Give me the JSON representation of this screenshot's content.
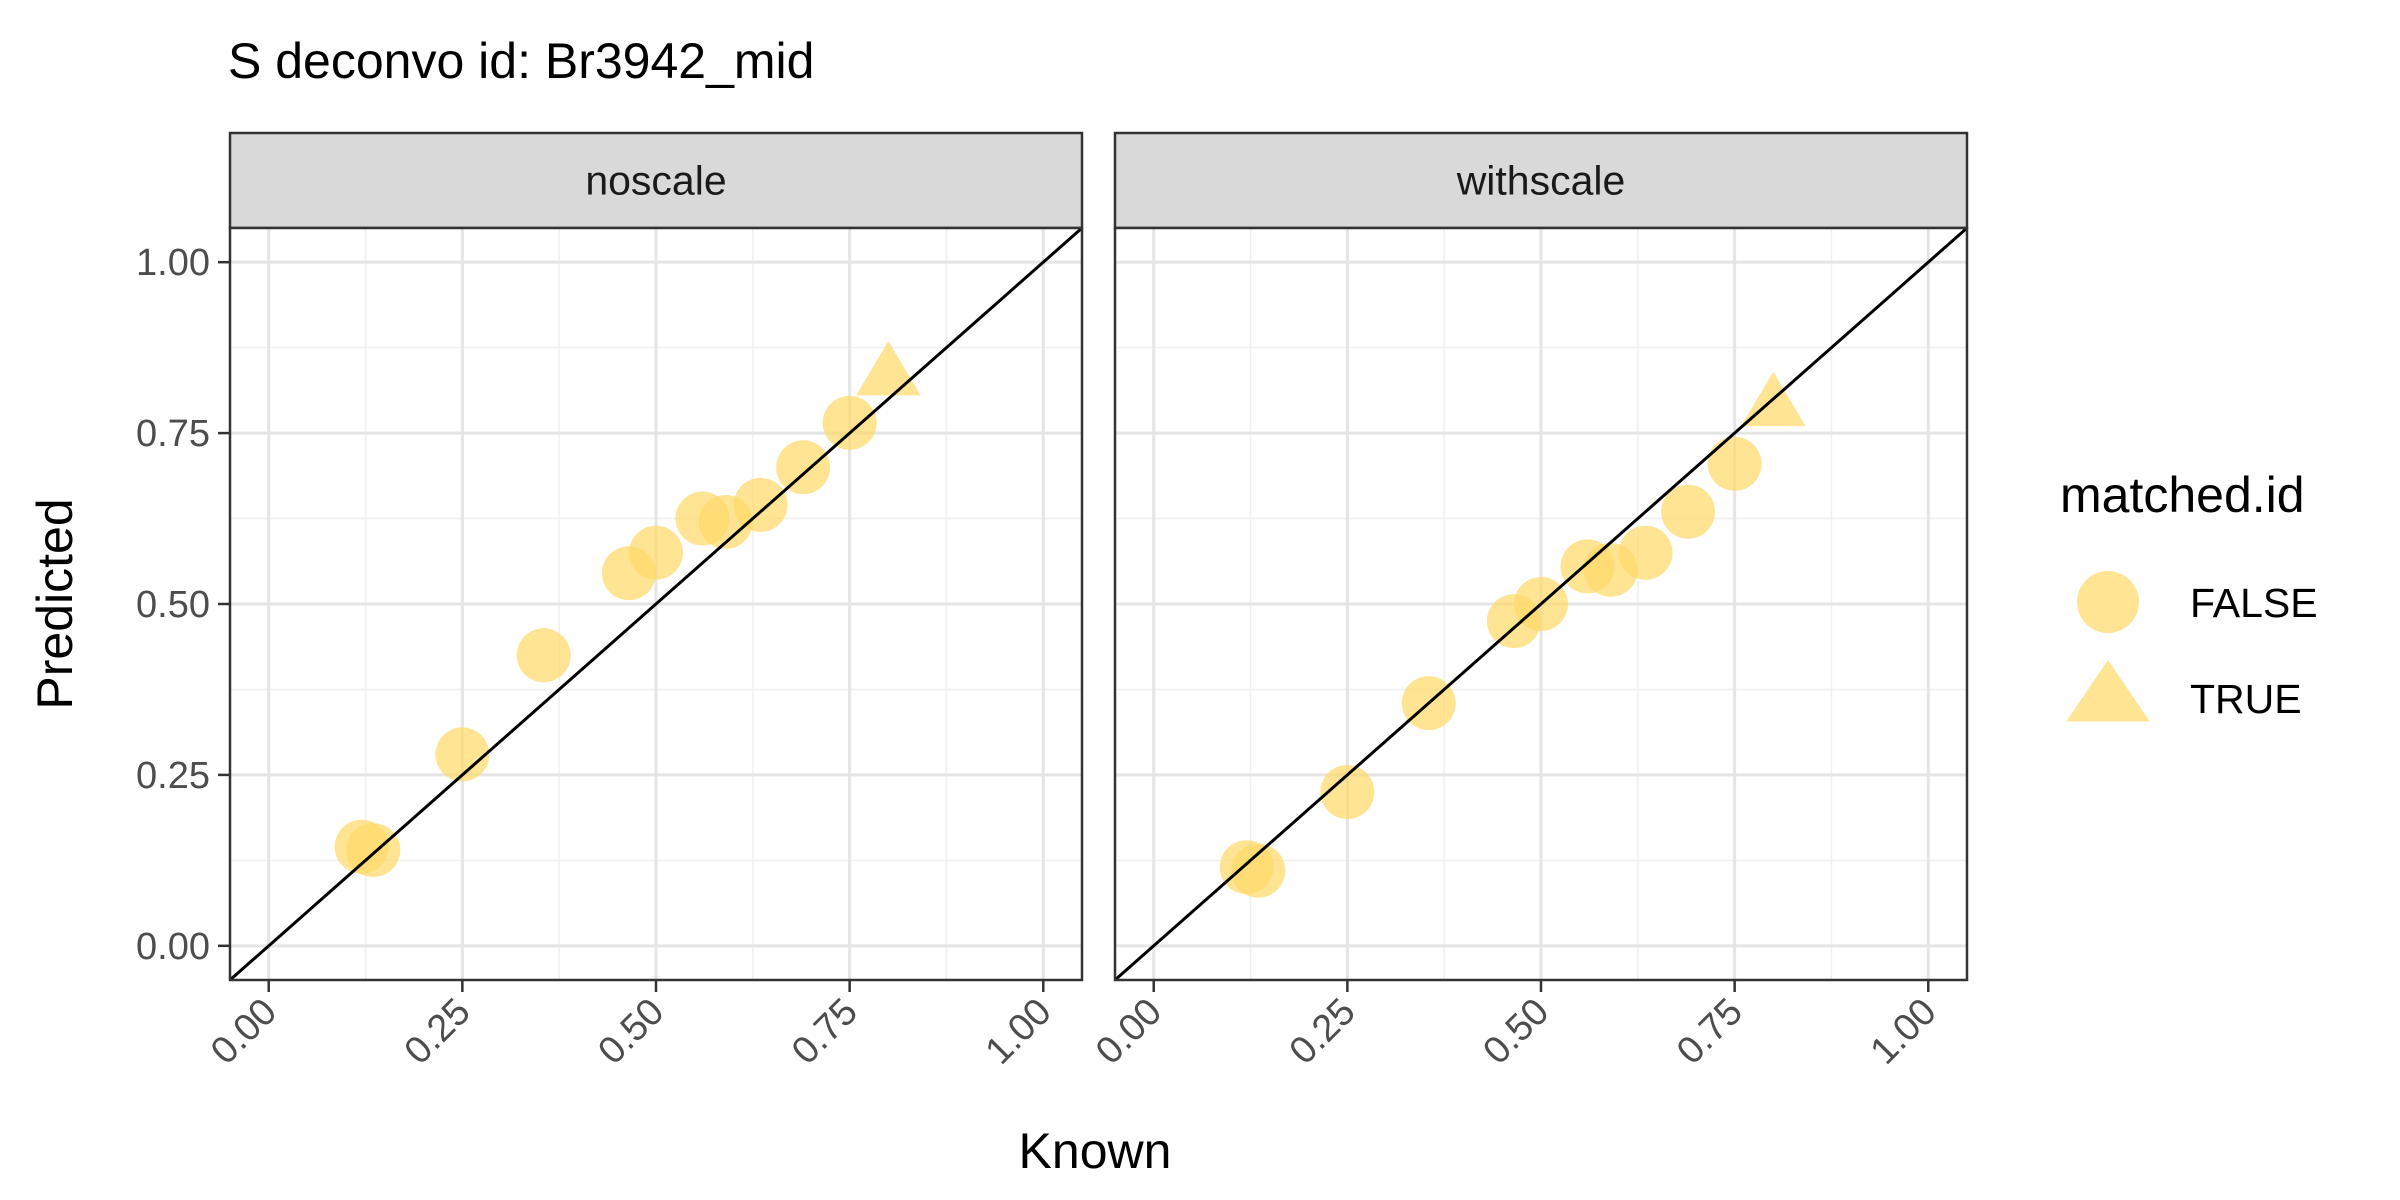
{
  "chart_data": {
    "type": "scatter",
    "title": "S deconvo id: Br3942_mid",
    "xlabel": "Known",
    "ylabel": "Predicted",
    "xlim": [
      -0.05,
      1.05
    ],
    "ylim": [
      -0.05,
      1.05
    ],
    "x_ticks": [
      "0.00",
      "0.25",
      "0.50",
      "0.75",
      "1.00"
    ],
    "y_ticks": [
      "0.00",
      "0.25",
      "0.50",
      "0.75",
      "1.00"
    ],
    "grid": true,
    "reference_line": "identity (y = x)",
    "point_color": "#FFD966",
    "legend": {
      "title": "matched.id",
      "placement": "right",
      "entries": [
        {
          "label": "FALSE",
          "shape": "circle"
        },
        {
          "label": "TRUE",
          "shape": "triangle"
        }
      ]
    },
    "facets": [
      {
        "label": "noscale",
        "points": [
          {
            "x": 0.12,
            "y": 0.145,
            "matched": "FALSE"
          },
          {
            "x": 0.135,
            "y": 0.14,
            "matched": "FALSE"
          },
          {
            "x": 0.25,
            "y": 0.28,
            "matched": "FALSE"
          },
          {
            "x": 0.355,
            "y": 0.425,
            "matched": "FALSE"
          },
          {
            "x": 0.465,
            "y": 0.545,
            "matched": "FALSE"
          },
          {
            "x": 0.5,
            "y": 0.575,
            "matched": "FALSE"
          },
          {
            "x": 0.56,
            "y": 0.625,
            "matched": "FALSE"
          },
          {
            "x": 0.59,
            "y": 0.62,
            "matched": "FALSE"
          },
          {
            "x": 0.635,
            "y": 0.645,
            "matched": "FALSE"
          },
          {
            "x": 0.69,
            "y": 0.7,
            "matched": "FALSE"
          },
          {
            "x": 0.75,
            "y": 0.765,
            "matched": "FALSE"
          },
          {
            "x": 0.8,
            "y": 0.835,
            "matched": "TRUE"
          }
        ]
      },
      {
        "label": "withscale",
        "points": [
          {
            "x": 0.12,
            "y": 0.115,
            "matched": "FALSE"
          },
          {
            "x": 0.135,
            "y": 0.11,
            "matched": "FALSE"
          },
          {
            "x": 0.25,
            "y": 0.225,
            "matched": "FALSE"
          },
          {
            "x": 0.355,
            "y": 0.355,
            "matched": "FALSE"
          },
          {
            "x": 0.465,
            "y": 0.475,
            "matched": "FALSE"
          },
          {
            "x": 0.5,
            "y": 0.5,
            "matched": "FALSE"
          },
          {
            "x": 0.56,
            "y": 0.555,
            "matched": "FALSE"
          },
          {
            "x": 0.59,
            "y": 0.55,
            "matched": "FALSE"
          },
          {
            "x": 0.635,
            "y": 0.575,
            "matched": "FALSE"
          },
          {
            "x": 0.69,
            "y": 0.635,
            "matched": "FALSE"
          },
          {
            "x": 0.75,
            "y": 0.705,
            "matched": "FALSE"
          },
          {
            "x": 0.8,
            "y": 0.79,
            "matched": "TRUE"
          }
        ]
      }
    ]
  }
}
